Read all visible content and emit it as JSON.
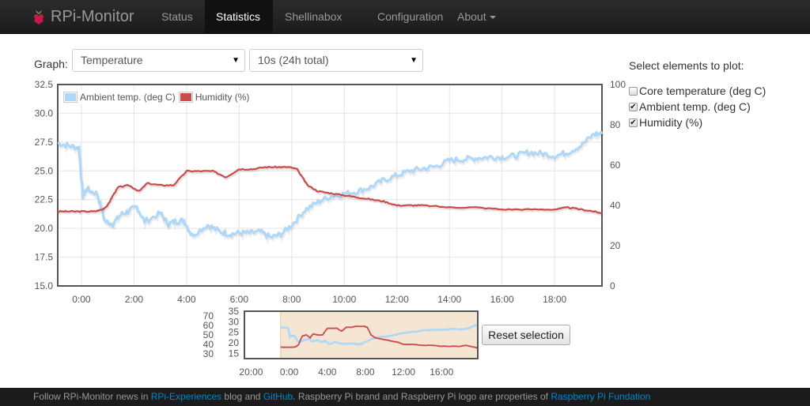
{
  "nav": {
    "brand": "RPi-Monitor",
    "items": [
      {
        "label": "Status",
        "active": false
      },
      {
        "label": "Statistics",
        "active": true
      },
      {
        "label": "Shellinabox",
        "active": false
      },
      {
        "label": "Configuration",
        "active": false
      },
      {
        "label": "About",
        "active": false
      }
    ]
  },
  "controls": {
    "graph_label": "Graph:",
    "graph_select": "Temperature",
    "range_select": "10s (24h total)"
  },
  "plot_options": {
    "title": "Select elements to plot:",
    "items": [
      {
        "label": "Core temperature (deg C)",
        "checked": false
      },
      {
        "label": "Ambient temp. (deg C)",
        "checked": true
      },
      {
        "label": "Humidity (%)",
        "checked": true
      }
    ]
  },
  "colors": {
    "temp": "#afd8f8",
    "humidity": "#cb4b4b",
    "selection": "#f5e6d3"
  },
  "chart_data": {
    "type": "line",
    "legend": [
      "Ambient temp. (deg C)",
      "Humidity (%)"
    ],
    "y_left": {
      "ticks": [
        "15.0",
        "17.5",
        "20.0",
        "22.5",
        "25.0",
        "27.5",
        "30.0",
        "32.5"
      ],
      "range": [
        15,
        32.5
      ]
    },
    "y_right": {
      "ticks": [
        "0",
        "20",
        "40",
        "60",
        "80",
        "100"
      ],
      "range": [
        0,
        100
      ]
    },
    "x_ticks": [
      "0:00",
      "2:00",
      "4:00",
      "6:00",
      "8:00",
      "10:00",
      "12:00",
      "14:00",
      "16:00",
      "18:00"
    ],
    "x_tick_hours": [
      0,
      2,
      4,
      6,
      8,
      10,
      12,
      14,
      16,
      18
    ],
    "x_range_hours": [
      -0.9,
      19.8
    ],
    "series": [
      {
        "name": "Ambient temp. (deg C)",
        "axis": "left",
        "hours": [
          -0.9,
          -0.5,
          -0.1,
          0.05,
          0.2,
          0.6,
          0.9,
          1.2,
          1.5,
          1.8,
          2.1,
          2.4,
          3.0,
          3.3,
          3.6,
          3.9,
          4.2,
          4.8,
          5.2,
          5.6,
          6.0,
          6.4,
          6.8,
          7.2,
          7.6,
          8.0,
          8.5,
          9.0,
          9.5,
          10.0,
          10.5,
          11.0,
          11.5,
          12.0,
          12.5,
          13.0,
          13.5,
          14.0,
          14.5,
          15.0,
          15.5,
          16.0,
          16.5,
          17.0,
          17.5,
          18.0,
          18.5,
          19.0,
          19.5,
          19.8
        ],
        "values": [
          27.4,
          27.2,
          27.0,
          22.8,
          23.4,
          23.0,
          20.6,
          20.4,
          21.2,
          21.5,
          21.9,
          20.6,
          21.3,
          20.4,
          20.6,
          20.7,
          19.4,
          20.3,
          19.8,
          19.5,
          19.6,
          19.6,
          19.7,
          19.2,
          19.5,
          20.3,
          21.6,
          22.3,
          22.8,
          23.0,
          23.2,
          23.6,
          24.2,
          24.6,
          25.0,
          25.2,
          25.4,
          25.9,
          26.0,
          26.1,
          26.2,
          26.2,
          26.3,
          26.6,
          26.5,
          26.3,
          26.6,
          27.2,
          28.2,
          28.2
        ]
      },
      {
        "name": "Humidity (%)",
        "axis": "right",
        "hours": [
          -0.9,
          -0.5,
          0.0,
          0.5,
          0.8,
          1.0,
          1.2,
          1.4,
          1.8,
          2.2,
          2.5,
          3.0,
          3.5,
          4.0,
          4.5,
          5.0,
          5.5,
          6.0,
          6.5,
          7.0,
          7.5,
          7.9,
          8.2,
          8.6,
          9.0,
          9.5,
          10.0,
          10.5,
          11.0,
          11.5,
          12.0,
          12.5,
          13.0,
          14.0,
          15.0,
          16.0,
          17.0,
          18.0,
          18.5,
          19.0,
          19.5,
          19.8
        ],
        "values": [
          37,
          37,
          37,
          37,
          38,
          40,
          45,
          49,
          50,
          47,
          51,
          50,
          50,
          57,
          57,
          57,
          54,
          58,
          58,
          59,
          59,
          59,
          58,
          50,
          47,
          46,
          45,
          44,
          43,
          42,
          40,
          40,
          40,
          39,
          39,
          38,
          38,
          38,
          39,
          38,
          37,
          36
        ]
      }
    ]
  },
  "overview": {
    "y_left_ticks": [
      "30",
      "40",
      "50",
      "60",
      "70"
    ],
    "y_right_ticks": [
      "15",
      "20",
      "25",
      "30",
      "35"
    ],
    "x_ticks": [
      "20:00",
      "0:00",
      "4:00",
      "8:00",
      "12:00",
      "16:00"
    ],
    "x_tick_hours": [
      -4,
      0,
      4,
      8,
      12,
      16
    ],
    "x_range_hours": [
      -4.7,
      19.8
    ],
    "selection_hours": [
      -0.9,
      19.8
    ]
  },
  "reset_button": "Reset selection",
  "footer": {
    "t1": "Follow RPi-Monitor news in ",
    "link1": "RPi-Experiences",
    "t2": " blog and ",
    "link2": "GitHub",
    "t3": ". Raspberry Pi brand and Raspberry Pi logo are properties of ",
    "link3": "Raspberry Pi Fundation"
  }
}
